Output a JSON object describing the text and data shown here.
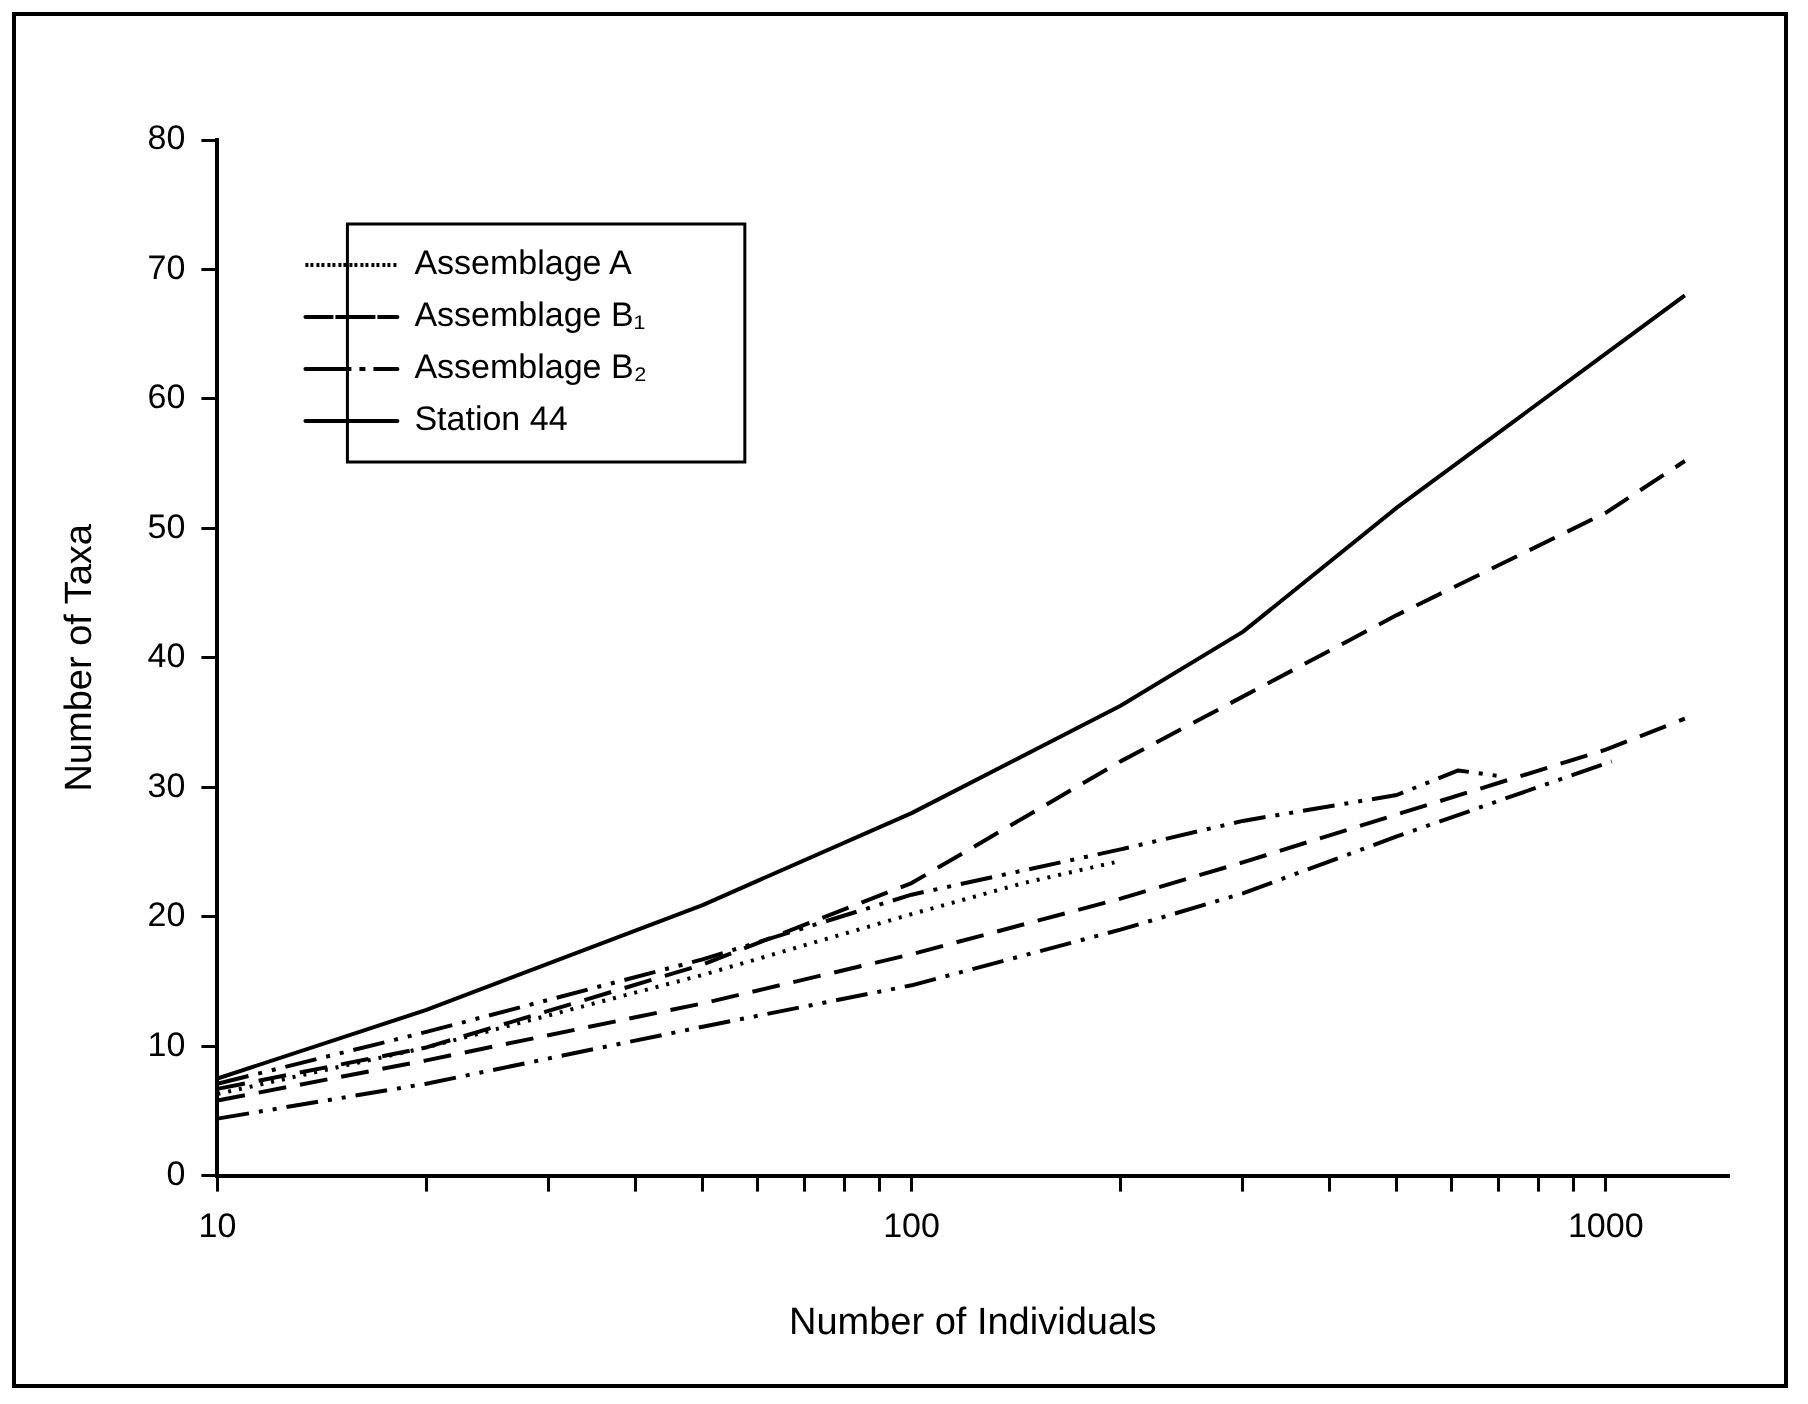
{
  "chart_data": {
    "type": "line",
    "xlabel": "Number of Individuals",
    "ylabel": "Number of Taxa",
    "log": "x",
    "xlim": [
      10,
      1500
    ],
    "ylim": [
      0,
      80
    ],
    "xticks": [
      10,
      {
        "value": 20,
        "label": null
      },
      {
        "value": 30,
        "label": null
      },
      {
        "value": 40,
        "label": null
      },
      {
        "value": 50,
        "label": null
      },
      {
        "value": 60,
        "label": null
      },
      {
        "value": 70,
        "label": null
      },
      {
        "value": 80,
        "label": null
      },
      {
        "value": 90,
        "label": null
      },
      100,
      {
        "value": 200,
        "label": null
      },
      {
        "value": 300,
        "label": null
      },
      {
        "value": 400,
        "label": null
      },
      {
        "value": 500,
        "label": null
      },
      {
        "value": 600,
        "label": null
      },
      {
        "value": 700,
        "label": null
      },
      {
        "value": 800,
        "label": null
      },
      {
        "value": 900,
        "label": null
      },
      1000
    ],
    "yticks": [
      0,
      10,
      20,
      30,
      40,
      50,
      60,
      70,
      80
    ],
    "grid": false,
    "legend": "top left",
    "marker": "none",
    "series": [
      {
        "name": "Assemblage A",
        "color": "#000000",
        "line_style": "dotted",
        "x": [
          10,
          20,
          50,
          100,
          145,
          196
        ],
        "values": [
          6.3,
          9.9,
          15.5,
          20.2,
          22.6,
          24.2
        ]
      },
      {
        "name": "Assemblage B₁",
        "color": "#000000",
        "line_style": "dashed",
        "x": [
          10,
          20,
          50,
          100,
          200,
          300,
          500,
          1000,
          1300
        ],
        "values": [
          6.7,
          9.9,
          16.3,
          22.6,
          32,
          37,
          43.3,
          51.2,
          55.2
        ]
      },
      {
        "color": "#000000",
        "line_style": "dashed",
        "x": [
          10,
          20,
          50,
          100,
          200,
          300,
          500,
          1000,
          1300
        ],
        "values": [
          5.8,
          8.9,
          13.3,
          17.1,
          21.4,
          24.2,
          27.9,
          32.9,
          35.3
        ]
      },
      {
        "name": "Assemblage B₂",
        "color": "#000000",
        "line_style": "dashdot",
        "x": [
          10,
          20,
          50,
          100,
          200,
          300,
          500,
          613,
          717
        ],
        "values": [
          7.1,
          11.1,
          16.7,
          21.7,
          25.2,
          27.4,
          29.4,
          31.3,
          30.8
        ]
      },
      {
        "color": "#000000",
        "line_style": "dashdot",
        "x": [
          10,
          20,
          50,
          100,
          200,
          300,
          500,
          1020
        ],
        "values": [
          4.4,
          7.1,
          11.5,
          14.7,
          19,
          21.8,
          26.2,
          32
        ]
      },
      {
        "name": "Station 44",
        "color": "#000000",
        "line_style": "solid",
        "x": [
          10,
          20,
          50,
          100,
          200,
          300,
          500,
          1000,
          1300
        ],
        "values": [
          7.5,
          12.8,
          20.9,
          28,
          36.3,
          42,
          51.6,
          63.5,
          68
        ]
      }
    ]
  }
}
